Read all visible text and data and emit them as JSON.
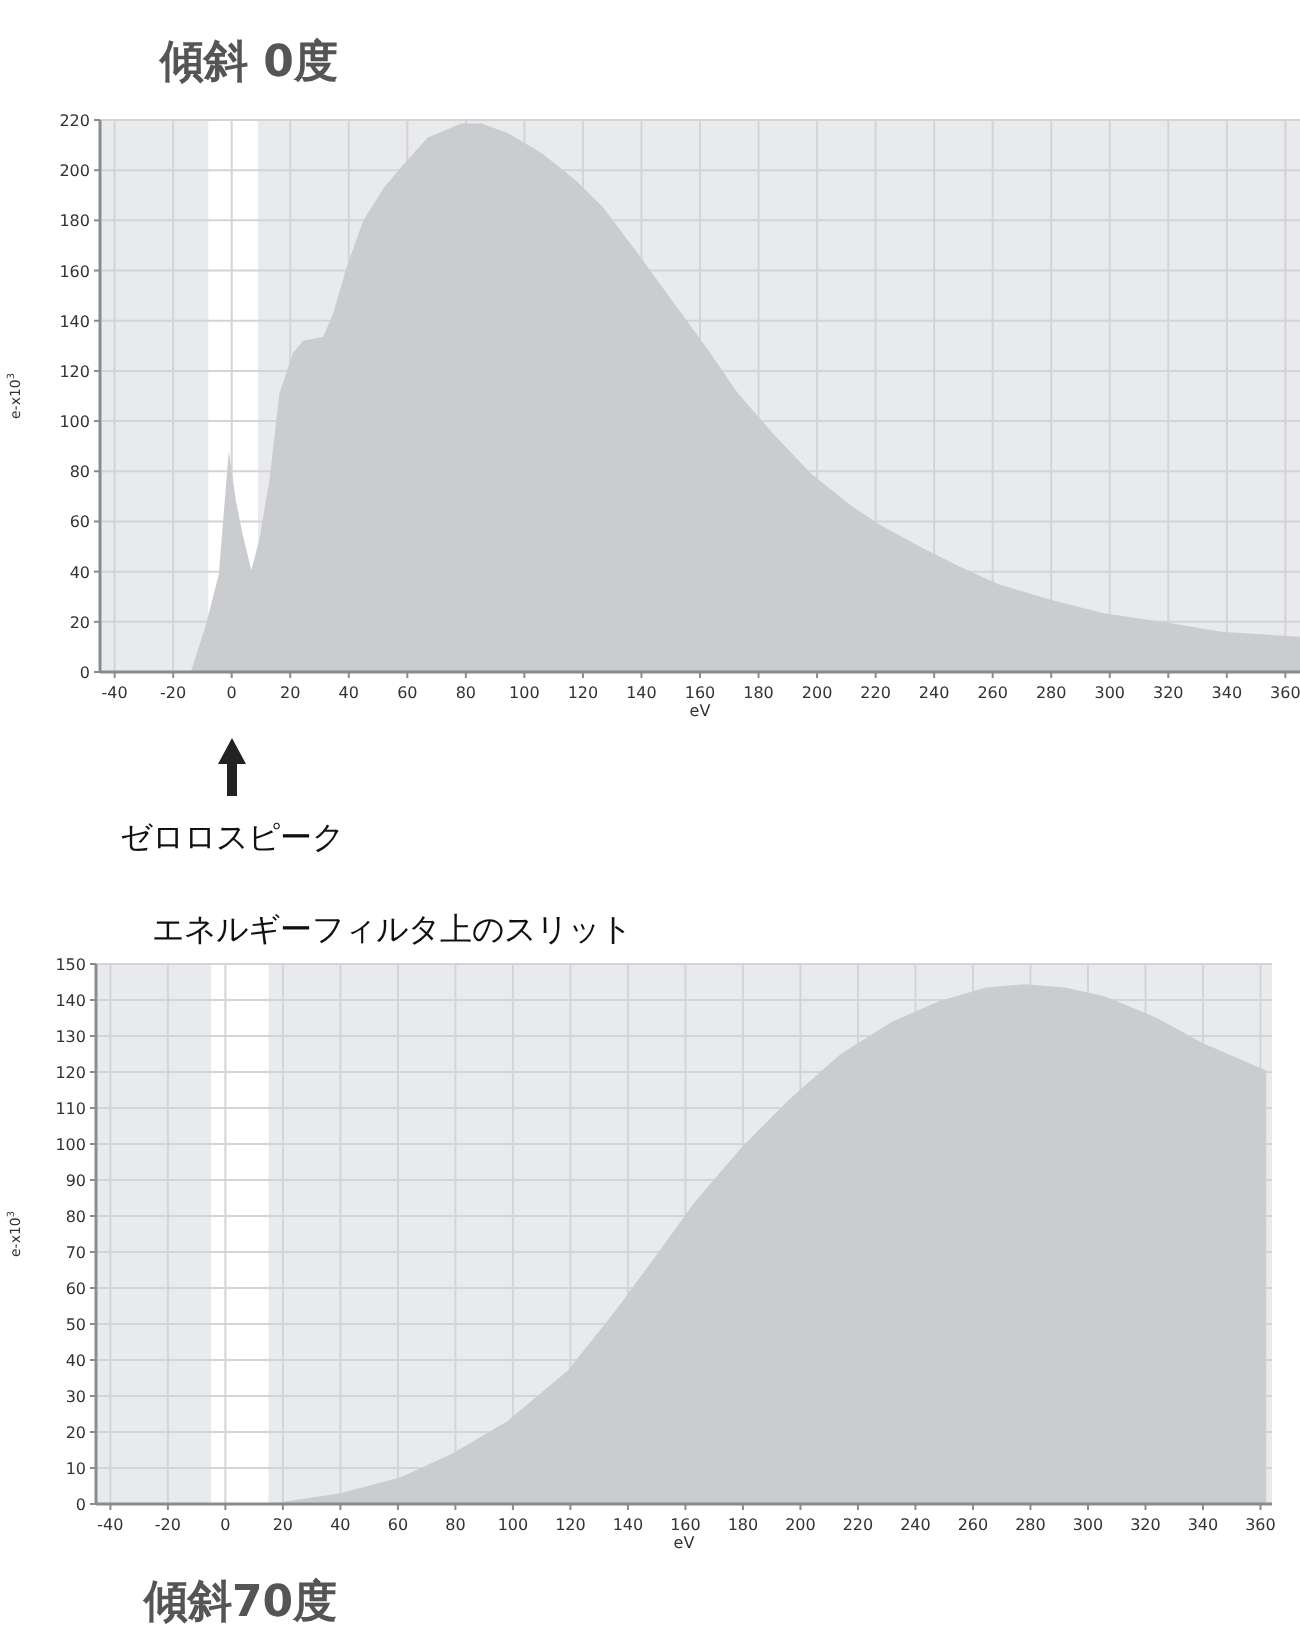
{
  "chart_data": [
    {
      "type": "area",
      "title": "傾斜 0度",
      "xlabel": "eV",
      "ylabel": "e-x10$^{3}$",
      "color": "#cbcccf",
      "grid": true,
      "xlim": [
        -45,
        365
      ],
      "ylim": [
        0,
        220
      ],
      "xticks": [
        -40,
        -20,
        0,
        20,
        40,
        60,
        80,
        100,
        120,
        140,
        160,
        180,
        200,
        220,
        240,
        260,
        280,
        300,
        320,
        340,
        360
      ],
      "yticks": [
        0,
        20,
        40,
        60,
        80,
        100,
        120,
        140,
        160,
        180,
        200,
        220
      ],
      "bands": [
        {
          "axis": "x",
          "from": -8,
          "to": 9,
          "color": "#ffffff"
        }
      ],
      "annotations": [
        "ゼロロスピーク"
      ],
      "x": [
        -14,
        -9,
        -4.4,
        -1,
        1.4,
        3.7,
        6.7,
        9.4,
        12.9,
        16.3,
        20.9,
        24.4,
        31.3,
        34.7,
        39.3,
        45,
        52,
        57.7,
        67,
        78.4,
        85.3,
        94.5,
        106,
        117.5,
        126.7,
        138,
        150.5,
        162,
        173,
        185,
        198,
        212,
        221,
        235,
        248.6,
        262,
        280,
        298,
        321,
        338,
        365
      ],
      "values": [
        0,
        18,
        39,
        88,
        68.5,
        55,
        40.6,
        52.6,
        76.5,
        111,
        127,
        132,
        133.6,
        143,
        161.5,
        180,
        193,
        201,
        213,
        218.6,
        218.6,
        214.7,
        206.7,
        196,
        185.4,
        168,
        148,
        129.6,
        111,
        95,
        79,
        66,
        59,
        50,
        42,
        35,
        28.7,
        23.4,
        19.4,
        16,
        14
      ]
    },
    {
      "type": "area",
      "title": "傾斜70度",
      "xlabel": "eV",
      "ylabel": "e-x10$^{3}$",
      "color": "#cbcccf",
      "grid": true,
      "xlim": [
        -45,
        364
      ],
      "ylim": [
        0,
        150
      ],
      "xticks": [
        -40,
        -20,
        0,
        20,
        40,
        60,
        80,
        100,
        120,
        140,
        160,
        180,
        200,
        220,
        240,
        260,
        280,
        300,
        320,
        340,
        360
      ],
      "yticks": [
        0,
        10,
        20,
        30,
        40,
        50,
        60,
        70,
        80,
        90,
        100,
        110,
        120,
        130,
        140,
        150
      ],
      "bands": [
        {
          "axis": "x",
          "from": -5,
          "to": 15,
          "color": "#ffffff"
        }
      ],
      "annotations": [
        "エネルギーフィルタ上のスリット"
      ],
      "x": [
        15,
        19,
        40,
        61,
        79,
        98,
        119,
        135,
        147,
        163.4,
        179.5,
        195.6,
        214,
        232,
        248,
        264.5,
        278,
        292,
        306,
        324,
        340,
        362
      ],
      "values": [
        0,
        0.5,
        3,
        7.4,
        14,
        23,
        37,
        53,
        66,
        84,
        99,
        112,
        125,
        134,
        139.6,
        143.5,
        144.4,
        143.5,
        141,
        135,
        128,
        120.4
      ]
    }
  ]
}
